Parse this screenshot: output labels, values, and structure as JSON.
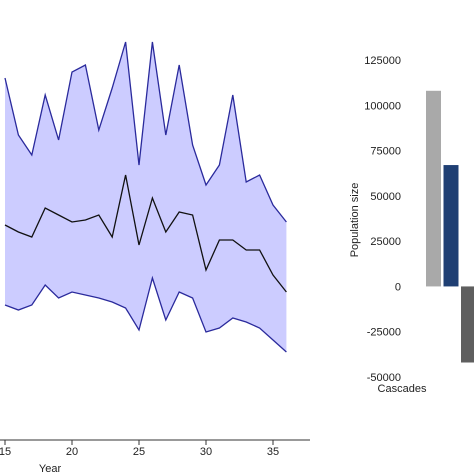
{
  "chart_data": [
    {
      "type": "band-line",
      "x_label": "Year",
      "x": [
        15,
        16,
        17,
        18,
        19,
        20,
        21,
        22,
        23,
        24,
        25,
        26,
        27,
        28,
        29,
        30,
        31,
        32,
        33,
        34,
        35,
        36
      ],
      "upper": {
        "color": "#2a2a9c",
        "values": [
          362,
          305,
          285,
          345,
          300,
          368,
          375,
          310,
          352,
          398,
          275,
          398,
          305,
          375,
          295,
          255,
          275,
          345,
          258,
          265,
          235,
          218
        ]
      },
      "lower": {
        "color": "#2a2a9c",
        "values": [
          135,
          130,
          135,
          155,
          142,
          148,
          145,
          142,
          138,
          132,
          110,
          162,
          120,
          148,
          142,
          108,
          112,
          122,
          118,
          112,
          100,
          88
        ]
      },
      "series": [
        {
          "color": "#111111",
          "values": [
            215,
            208,
            203,
            232,
            225,
            218,
            220,
            225,
            203,
            265,
            195,
            242,
            208,
            228,
            225,
            170,
            200,
            200,
            190,
            190,
            165,
            148
          ]
        }
      ],
      "band_color": "#ccccff",
      "xlim": [
        14.6,
        37.3
      ],
      "ylim": [
        0,
        440
      ],
      "xticks": [
        15,
        20,
        25,
        30,
        35
      ]
    },
    {
      "type": "bar",
      "y_label": "Population size",
      "categories": [
        "Cascades"
      ],
      "series": [
        {
          "color": "#a9a9a9",
          "values": [
            108000
          ]
        },
        {
          "color": "#1f3f73",
          "values": [
            67000
          ]
        },
        {
          "color": "#5f5f5f",
          "values": [
            -42000
          ]
        }
      ],
      "ylim": [
        -50000,
        125000
      ],
      "yticks": [
        -50000,
        -25000,
        0,
        25000,
        50000,
        75000,
        100000,
        125000
      ]
    }
  ]
}
